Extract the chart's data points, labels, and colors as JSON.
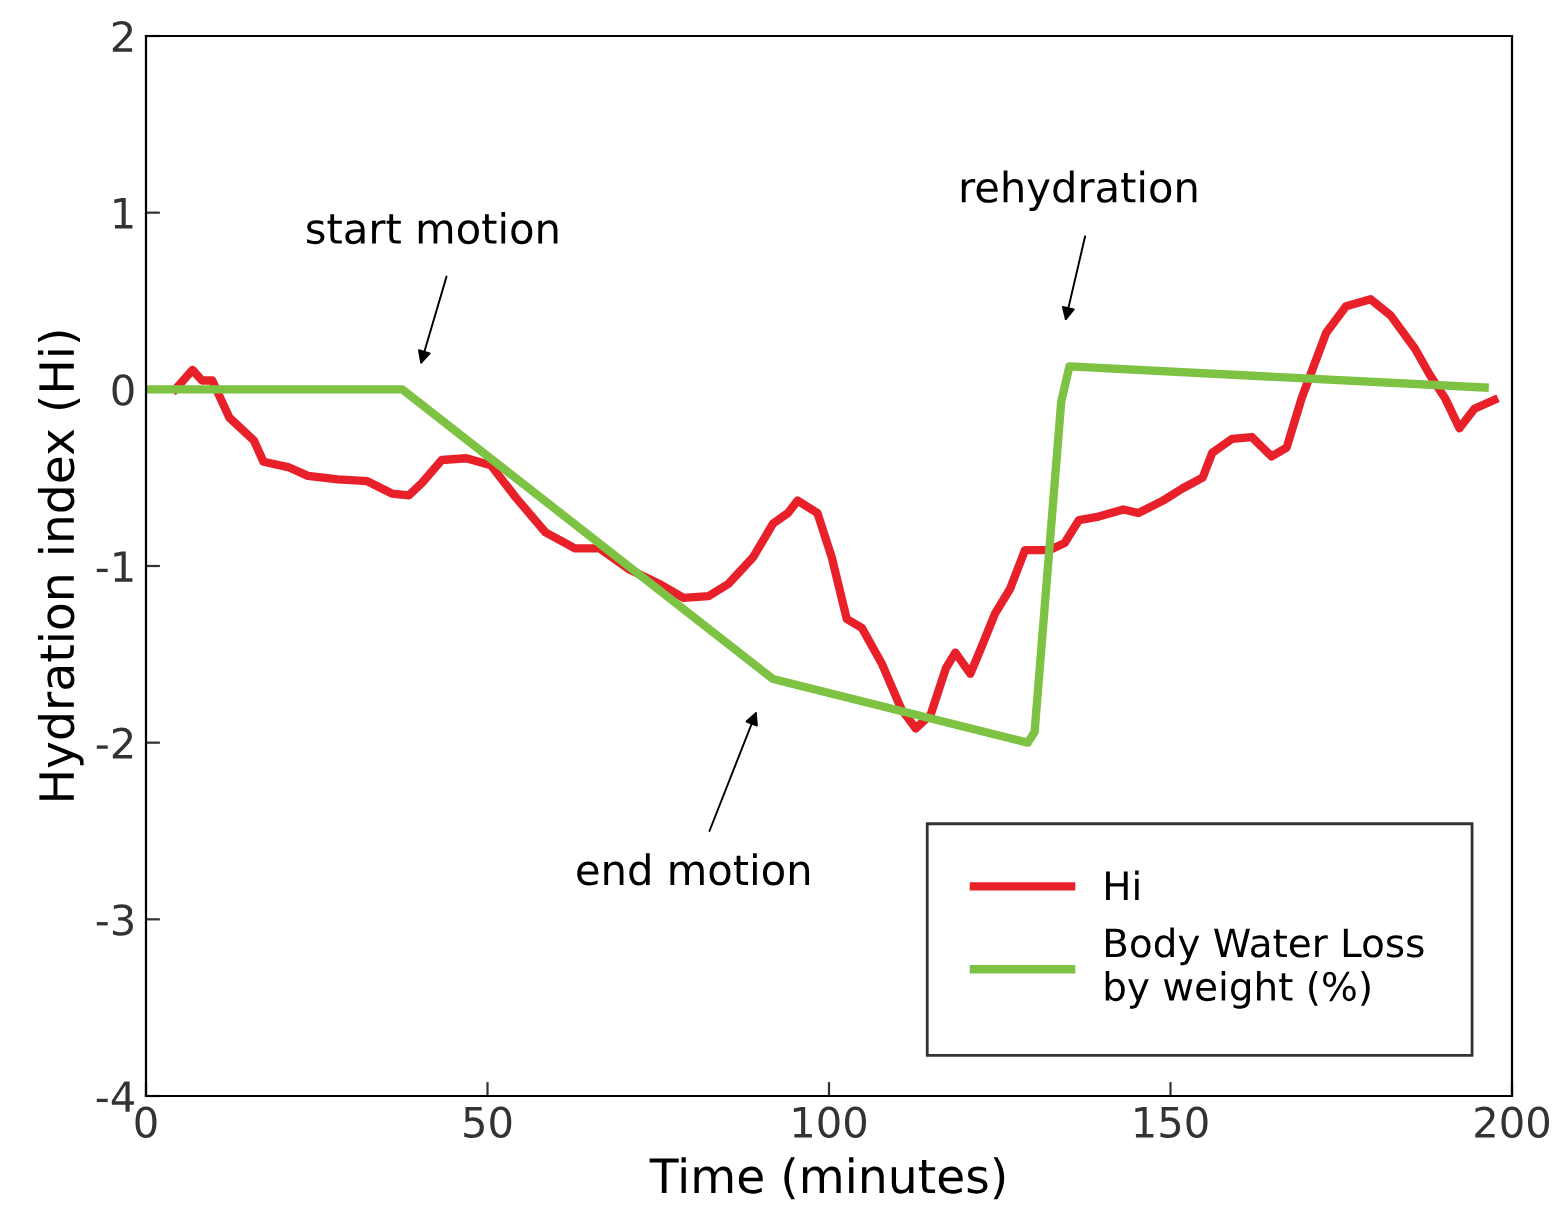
{
  "chart_data": {
    "type": "line",
    "xlabel": "Time (minutes)",
    "ylabel": "Hydration index (Hi)",
    "xlim": [
      0,
      200
    ],
    "xticks": [
      0,
      50,
      100,
      150,
      200
    ],
    "ylim": [
      -4,
      2
    ],
    "yticks": [
      -4,
      -3,
      -2,
      -1,
      0,
      1,
      2
    ],
    "grid": false,
    "legend": "bottom right",
    "marker": "none",
    "line_style": "solid",
    "series": [
      {
        "name": "Hi",
        "color": "#e8202a",
        "x": [
          4.3,
          6.8,
          8.2,
          9.7,
          12.2,
          15.8,
          17.2,
          20.8,
          23.7,
          28.1,
          32.4,
          36,
          38.5,
          40.4,
          43.3,
          46.9,
          50.5,
          54.1,
          58.5,
          62.8,
          66.4,
          70.8,
          75.1,
          78.7,
          82.4,
          85.3,
          88.9,
          91.8,
          94.0,
          95.4,
          98.3,
          100.4,
          102.6,
          104.8,
          107.7,
          110.6,
          112.7,
          114.9,
          117.1,
          118.5,
          120.7,
          122.2,
          124.3,
          126.5,
          128.7,
          132.3,
          134.5,
          136.6,
          139.5,
          143.1,
          145.3,
          148.9,
          151.8,
          154.7,
          156.1,
          159.0,
          161.9,
          164.8,
          167,
          169.2,
          172.8,
          175.7,
          179.3,
          182.2,
          185.8,
          188,
          190.2,
          192.3,
          194.5,
          197.4
        ],
        "values": [
          0,
          0.11,
          0.05,
          0.05,
          -0.16,
          -0.29,
          -0.41,
          -0.44,
          -0.49,
          -0.51,
          -0.52,
          -0.59,
          -0.6,
          -0.53,
          -0.4,
          -0.39,
          -0.43,
          -0.61,
          -0.81,
          -0.9,
          -0.9,
          -1.02,
          -1.1,
          -1.18,
          -1.17,
          -1.1,
          -0.95,
          -0.76,
          -0.7,
          -0.63,
          -0.7,
          -0.95,
          -1.3,
          -1.35,
          -1.55,
          -1.81,
          -1.92,
          -1.84,
          -1.58,
          -1.49,
          -1.61,
          -1.47,
          -1.27,
          -1.13,
          -0.91,
          -0.91,
          -0.87,
          -0.74,
          -0.72,
          -0.68,
          -0.7,
          -0.63,
          -0.56,
          -0.5,
          -0.36,
          -0.28,
          -0.27,
          -0.38,
          -0.33,
          -0.05,
          0.32,
          0.47,
          0.51,
          0.42,
          0.23,
          0.08,
          -0.05,
          -0.22,
          -0.11,
          -0.06
        ]
      },
      {
        "name": "Body Water Loss\nby weight (%)",
        "color": "#7dc242",
        "x": [
          0,
          37.5,
          91.8,
          129.1,
          130.1,
          134,
          135.2,
          196
        ],
        "values": [
          0,
          0,
          -1.64,
          -2.0,
          -1.94,
          -0.07,
          0.13,
          0.01
        ]
      }
    ],
    "annotations": [
      "start motion",
      "end motion",
      "rehydration"
    ]
  }
}
